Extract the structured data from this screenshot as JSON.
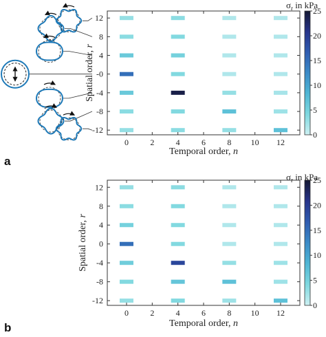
{
  "colors": {
    "scale": [
      "#ccf0f2",
      "#7fd8df",
      "#4fb6d4",
      "#3b8bc7",
      "#2f5cb0",
      "#27348a",
      "#141833"
    ],
    "frame": "#333333",
    "icon_stroke": "#1f7ab8"
  },
  "chart_data": [
    {
      "type": "heatmap",
      "panel_label": "a",
      "xlabel_text": "Temporal order, ",
      "xlabel_var": "n",
      "ylabel_text": "Spatial order, ",
      "ylabel_var": "r",
      "colorbar_symbol": "σ",
      "colorbar_sub": "r",
      "colorbar_text": " in kPa",
      "xlim": [
        -1.5,
        13.5
      ],
      "ylim": [
        -13,
        13.5
      ],
      "xticks": [
        "0",
        "2",
        "4",
        "6",
        "8",
        "10",
        "12"
      ],
      "yticks": [
        "12",
        "8",
        "4",
        "-0",
        "-4",
        "-8",
        "-12"
      ],
      "ytick_values": [
        12,
        8,
        4,
        0,
        -4,
        -8,
        -12
      ],
      "xtick_values": [
        0,
        2,
        4,
        6,
        8,
        10,
        12
      ],
      "colorbar_ticks": [
        0,
        5,
        10,
        15,
        20,
        25
      ],
      "color_range": [
        0,
        25
      ],
      "grid": false,
      "cells": [
        {
          "n": 0,
          "r": 12,
          "v": 3
        },
        {
          "n": 0,
          "r": 8,
          "v": 3.5
        },
        {
          "n": 0,
          "r": 4,
          "v": 6
        },
        {
          "n": 0,
          "r": 0,
          "v": 15
        },
        {
          "n": 0,
          "r": -4,
          "v": 6
        },
        {
          "n": 0,
          "r": -8,
          "v": 3.5
        },
        {
          "n": 0,
          "r": -12,
          "v": 3
        },
        {
          "n": 4,
          "r": 12,
          "v": 3.5
        },
        {
          "n": 4,
          "r": 8,
          "v": 4
        },
        {
          "n": 4,
          "r": 4,
          "v": 5
        },
        {
          "n": 4,
          "r": 0,
          "v": 4
        },
        {
          "n": 4,
          "r": -4,
          "v": 24
        },
        {
          "n": 4,
          "r": -8,
          "v": 4
        },
        {
          "n": 4,
          "r": -12,
          "v": 3.5
        },
        {
          "n": 8,
          "r": 12,
          "v": 1.5
        },
        {
          "n": 8,
          "r": 8,
          "v": 1.5
        },
        {
          "n": 8,
          "r": 4,
          "v": 1.5
        },
        {
          "n": 8,
          "r": 0,
          "v": 1.5
        },
        {
          "n": 8,
          "r": -4,
          "v": 3
        },
        {
          "n": 8,
          "r": -8,
          "v": 7
        },
        {
          "n": 8,
          "r": -12,
          "v": 3
        },
        {
          "n": 12,
          "r": 12,
          "v": 1.5
        },
        {
          "n": 12,
          "r": 8,
          "v": 1.5
        },
        {
          "n": 12,
          "r": 4,
          "v": 1.5
        },
        {
          "n": 12,
          "r": 0,
          "v": 1.5
        },
        {
          "n": 12,
          "r": -4,
          "v": 2
        },
        {
          "n": 12,
          "r": -8,
          "v": 2.5
        },
        {
          "n": 12,
          "r": -12,
          "v": 7
        }
      ]
    },
    {
      "type": "heatmap",
      "panel_label": "b",
      "xlabel_text": "Temporal order, ",
      "xlabel_var": "n",
      "ylabel_text": "Spatial order, ",
      "ylabel_var": "r",
      "colorbar_symbol": "σ",
      "colorbar_sub": "r",
      "colorbar_text": " in kPa",
      "xlim": [
        -1.5,
        13.5
      ],
      "ylim": [
        -13,
        13.5
      ],
      "xticks": [
        "0",
        "2",
        "4",
        "6",
        "8",
        "10",
        "12"
      ],
      "yticks": [
        "12",
        "8",
        "4",
        "0",
        "-4",
        "-8",
        "-12"
      ],
      "ytick_values": [
        12,
        8,
        4,
        0,
        -4,
        -8,
        -12
      ],
      "xtick_values": [
        0,
        2,
        4,
        6,
        8,
        10,
        12
      ],
      "colorbar_ticks": [
        0,
        5,
        10,
        15,
        20,
        25
      ],
      "color_range": [
        0,
        25
      ],
      "grid": false,
      "cells": [
        {
          "n": 0,
          "r": 12,
          "v": 3
        },
        {
          "n": 0,
          "r": 8,
          "v": 3.5
        },
        {
          "n": 0,
          "r": 4,
          "v": 5
        },
        {
          "n": 0,
          "r": 0,
          "v": 15
        },
        {
          "n": 0,
          "r": -4,
          "v": 5.5
        },
        {
          "n": 0,
          "r": -8,
          "v": 4
        },
        {
          "n": 0,
          "r": -12,
          "v": 3
        },
        {
          "n": 4,
          "r": 12,
          "v": 3.5
        },
        {
          "n": 4,
          "r": 8,
          "v": 4
        },
        {
          "n": 4,
          "r": 4,
          "v": 4
        },
        {
          "n": 4,
          "r": 0,
          "v": 4
        },
        {
          "n": 4,
          "r": -4,
          "v": 19
        },
        {
          "n": 4,
          "r": -8,
          "v": 6.5
        },
        {
          "n": 4,
          "r": -12,
          "v": 4
        },
        {
          "n": 8,
          "r": 12,
          "v": 1.5
        },
        {
          "n": 8,
          "r": 8,
          "v": 1.5
        },
        {
          "n": 8,
          "r": 4,
          "v": 1.5
        },
        {
          "n": 8,
          "r": 0,
          "v": 1.5
        },
        {
          "n": 8,
          "r": -4,
          "v": 3
        },
        {
          "n": 8,
          "r": -8,
          "v": 7
        },
        {
          "n": 8,
          "r": -12,
          "v": 2.5
        },
        {
          "n": 12,
          "r": 12,
          "v": 1.5
        },
        {
          "n": 12,
          "r": 8,
          "v": 1.5
        },
        {
          "n": 12,
          "r": 4,
          "v": 1.5
        },
        {
          "n": 12,
          "r": 0,
          "v": 1.5
        },
        {
          "n": 12,
          "r": -4,
          "v": 2.5
        },
        {
          "n": 12,
          "r": -8,
          "v": 2.5
        },
        {
          "n": 12,
          "r": -12,
          "v": 7
        }
      ]
    }
  ],
  "mode_icons": [
    {
      "r": 12,
      "type": "lobed",
      "lobes": 12,
      "arrow": "left"
    },
    {
      "r": 8,
      "type": "lobed",
      "lobes": 8,
      "arrow": "left"
    },
    {
      "r": 4,
      "type": "lobed",
      "lobes": 4,
      "arrow": "left"
    },
    {
      "r": 0,
      "type": "breathing"
    },
    {
      "r": -4,
      "type": "lobed",
      "lobes": 4,
      "arrow": "right"
    },
    {
      "r": -8,
      "type": "lobed",
      "lobes": 8,
      "arrow": "right"
    },
    {
      "r": -12,
      "type": "lobed",
      "lobes": 12,
      "arrow": "right"
    }
  ]
}
